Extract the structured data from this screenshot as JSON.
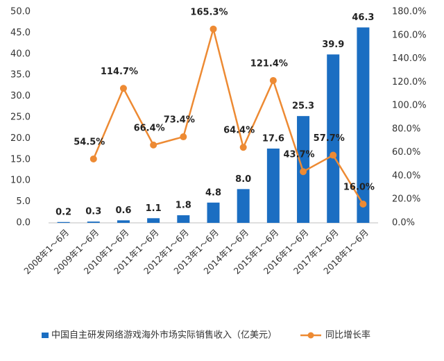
{
  "chart_data": {
    "type": "bar-line",
    "categories": [
      "2008年1～6月",
      "2009年1～6月",
      "2010年1～6月",
      "2011年1～6月",
      "2012年1～6月",
      "2013年1～6月",
      "2014年1～6月",
      "2015年1～6月",
      "2016年1～6月",
      "2017年1～6月",
      "2018年1～6月"
    ],
    "series": [
      {
        "name": "中国自主研发网络游戏海外市场实际销售收入（亿美元）",
        "type": "bar",
        "color": "#1b6ec2",
        "values": [
          0.2,
          0.3,
          0.6,
          1.1,
          1.8,
          4.8,
          8.0,
          17.6,
          25.3,
          39.9,
          46.3
        ],
        "value_labels": [
          "0.2",
          "0.3",
          "0.6",
          "1.1",
          "1.8",
          "4.8",
          "8.0",
          "17.6",
          "25.3",
          "39.9",
          "46.3"
        ]
      },
      {
        "name": "同比增长率",
        "type": "line",
        "axis": "y2",
        "color": "#ed8a33",
        "values": [
          null,
          54.5,
          114.7,
          66.4,
          73.4,
          165.3,
          64.4,
          121.4,
          43.7,
          57.7,
          16.0
        ],
        "value_labels": [
          null,
          "54.5%",
          "114.7%",
          "66.4%",
          "73.4%",
          "165.3%",
          "64.4%",
          "121.4%",
          "43.7%",
          "57.7%",
          "16.0%"
        ]
      }
    ],
    "ylim": [
      0,
      50
    ],
    "yticks": [
      {
        "value": 0,
        "label": "0.0"
      },
      {
        "value": 5,
        "label": "5.0"
      },
      {
        "value": 10,
        "label": "10.0"
      },
      {
        "value": 15,
        "label": "15.0"
      },
      {
        "value": 20,
        "label": "20.0"
      },
      {
        "value": 25,
        "label": "25.0"
      },
      {
        "value": 30,
        "label": "30.0"
      },
      {
        "value": 35,
        "label": "35.0"
      },
      {
        "value": 40,
        "label": "40.0"
      },
      {
        "value": 45,
        "label": "45.0"
      },
      {
        "value": 50,
        "label": "50.0"
      }
    ],
    "y2lim": [
      0,
      180
    ],
    "y2ticks": [
      {
        "value": 0,
        "label": "0.0%"
      },
      {
        "value": 20,
        "label": "20.0%"
      },
      {
        "value": 40,
        "label": "40.0%"
      },
      {
        "value": 60,
        "label": "60.0%"
      },
      {
        "value": 80,
        "label": "80.0%"
      },
      {
        "value": 100,
        "label": "100.0%"
      },
      {
        "value": 120,
        "label": "120.0%"
      },
      {
        "value": 140,
        "label": "140.0%"
      },
      {
        "value": 160,
        "label": "160.0%"
      },
      {
        "value": 180,
        "label": "180.0%"
      }
    ],
    "legend": "bottom",
    "grid": false
  }
}
